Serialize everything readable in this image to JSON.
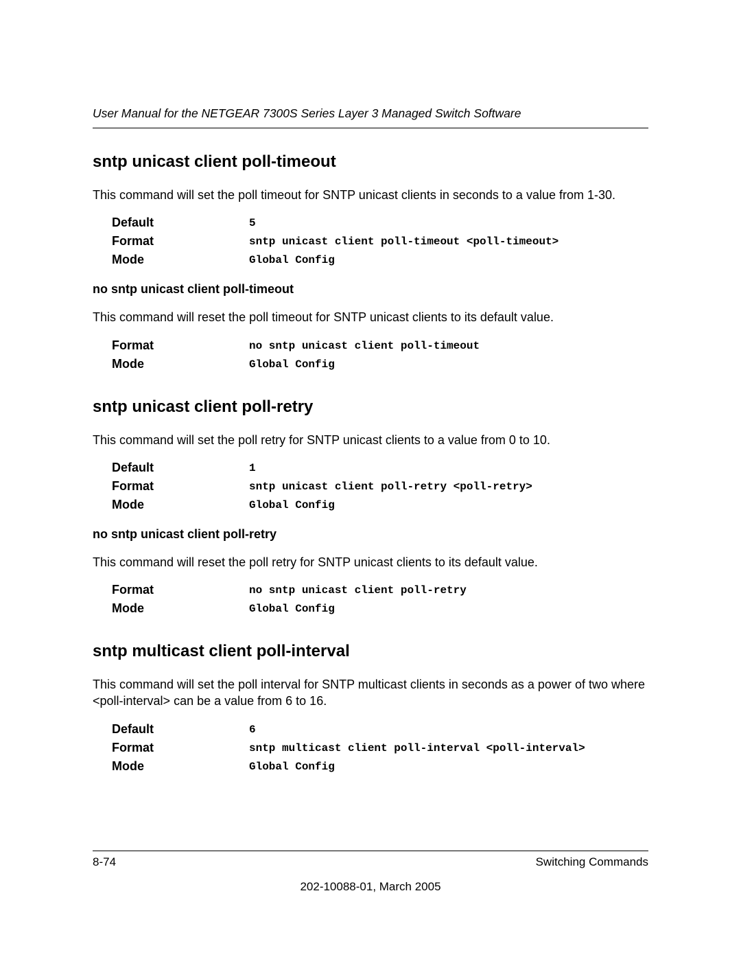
{
  "header": {
    "running_title": "User Manual for the NETGEAR 7300S Series Layer 3 Managed Switch Software"
  },
  "sections": [
    {
      "title": "sntp unicast client poll-timeout",
      "body": "This command will set the poll timeout for SNTP unicast clients in seconds to a value from 1-30.",
      "params": [
        {
          "label": "Default",
          "value": "5"
        },
        {
          "label": "Format",
          "value": "sntp unicast client poll-timeout <poll-timeout>"
        },
        {
          "label": "Mode",
          "value": "Global Config"
        }
      ],
      "sub": {
        "title": "no sntp unicast client poll-timeout",
        "body": "This command will reset the poll timeout for SNTP unicast clients to its default value.",
        "params": [
          {
            "label": "Format",
            "value": "no sntp unicast client poll-timeout"
          },
          {
            "label": "Mode",
            "value": "Global Config"
          }
        ]
      }
    },
    {
      "title": "sntp unicast client poll-retry",
      "body": "This command will set the poll retry for SNTP unicast clients to a value from 0 to 10.",
      "params": [
        {
          "label": "Default",
          "value": "1"
        },
        {
          "label": "Format",
          "value": "sntp unicast client poll-retry <poll-retry>"
        },
        {
          "label": "Mode",
          "value": "Global Config"
        }
      ],
      "sub": {
        "title": "no sntp unicast client poll-retry",
        "body": "This command will reset the poll retry for SNTP unicast clients to its default value.",
        "params": [
          {
            "label": "Format",
            "value": "no sntp unicast client poll-retry"
          },
          {
            "label": "Mode",
            "value": "Global Config"
          }
        ]
      }
    },
    {
      "title": "sntp multicast client poll-interval",
      "body": "This command will set the poll interval for SNTP multicast clients in seconds as a power of two where <poll-interval> can be a value from 6 to 16.",
      "params": [
        {
          "label": "Default",
          "value": "6"
        },
        {
          "label": "Format",
          "value": "sntp multicast client poll-interval <poll-interval>"
        },
        {
          "label": "Mode",
          "value": "Global Config"
        }
      ]
    }
  ],
  "footer": {
    "page_num": "8-74",
    "chapter": "Switching Commands",
    "docinfo": "202-10088-01, March 2005"
  }
}
